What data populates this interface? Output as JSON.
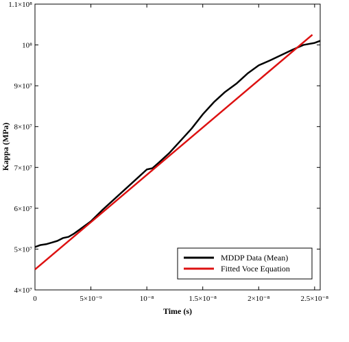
{
  "chart_data": {
    "type": "line",
    "title": "",
    "xlabel": "Time (s)",
    "ylabel": "Kappa (MPa)",
    "xlim": [
      0,
      2.55e-08
    ],
    "ylim": [
      40000000.0,
      110000000.0
    ],
    "grid": false,
    "legend_position": "bottom-right",
    "x_ticks": [
      {
        "value": 0,
        "label": "0"
      },
      {
        "value": 5e-09,
        "label": "5×10⁻⁹"
      },
      {
        "value": 1e-08,
        "label": "10⁻⁸"
      },
      {
        "value": 1.5e-08,
        "label": "1.5×10⁻⁸"
      },
      {
        "value": 2e-08,
        "label": "2×10⁻⁸"
      },
      {
        "value": 2.5e-08,
        "label": "2.5×10⁻⁸"
      }
    ],
    "y_ticks": [
      {
        "value": 40000000.0,
        "label": "4×10⁷"
      },
      {
        "value": 50000000.0,
        "label": "5×10⁷"
      },
      {
        "value": 60000000.0,
        "label": "6×10⁷"
      },
      {
        "value": 70000000.0,
        "label": "7×10⁷"
      },
      {
        "value": 80000000.0,
        "label": "8×10⁷"
      },
      {
        "value": 90000000.0,
        "label": "9×10⁷"
      },
      {
        "value": 100000000.0,
        "label": "10⁸"
      },
      {
        "value": 110000000.0,
        "label": "1.1×10⁸"
      }
    ],
    "series": [
      {
        "name": "MDDP Data (Mean)",
        "color": "#000000",
        "x": [
          0,
          5e-10,
          1e-09,
          1.5e-09,
          2e-09,
          2.5e-09,
          3e-09,
          3.5e-09,
          4e-09,
          4.5e-09,
          5e-09,
          6e-09,
          7e-09,
          8e-09,
          9e-09,
          1e-08,
          1.05e-08,
          1.1e-08,
          1.2e-08,
          1.3e-08,
          1.4e-08,
          1.5e-08,
          1.6e-08,
          1.7e-08,
          1.8e-08,
          1.9e-08,
          2e-08,
          2.1e-08,
          2.2e-08,
          2.3e-08,
          2.4e-08,
          2.5e-08,
          2.55e-08
        ],
        "y": [
          50500000.0,
          51000000.0,
          51200000.0,
          51600000.0,
          52000000.0,
          52700000.0,
          53000000.0,
          53800000.0,
          54800000.0,
          55800000.0,
          56800000.0,
          59500000.0,
          62000000.0,
          64500000.0,
          67000000.0,
          69500000.0,
          69800000.0,
          71000000.0,
          73500000.0,
          76500000.0,
          79500000.0,
          83000000.0,
          86000000.0,
          88500000.0,
          90500000.0,
          93000000.0,
          95000000.0,
          96200000.0,
          97500000.0,
          98800000.0,
          100000000.0,
          100500000.0,
          101000000.0
        ]
      },
      {
        "name": "Fitted Voce Equation",
        "color": "#dd1111",
        "x": [
          0,
          2.48e-08
        ],
        "y": [
          45000000.0,
          102500000.0
        ]
      }
    ]
  }
}
